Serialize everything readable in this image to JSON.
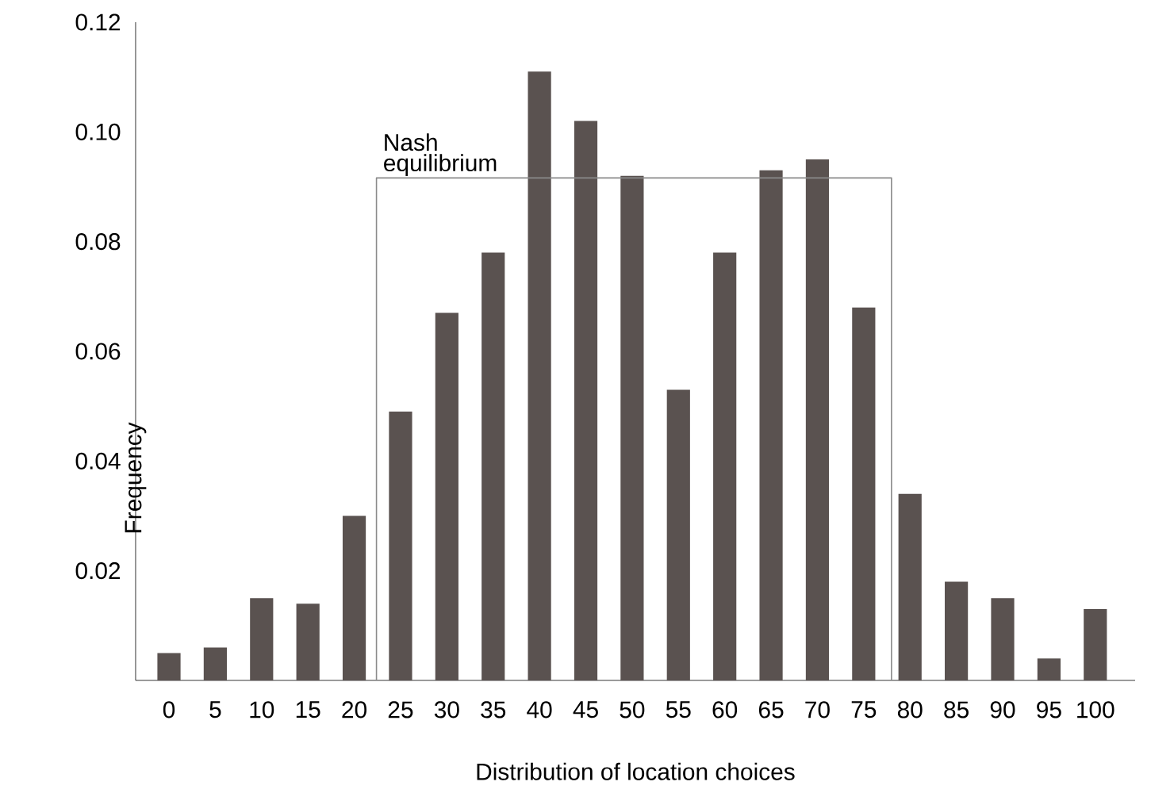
{
  "chart_data": {
    "type": "bar",
    "xlabel": "Distribution of location choices",
    "ylabel": "Frequency",
    "xlim": [
      -3.6,
      104.3
    ],
    "ylim": [
      0,
      0.12
    ],
    "xticks": [
      0,
      5,
      10,
      15,
      20,
      25,
      30,
      35,
      40,
      45,
      50,
      55,
      60,
      65,
      70,
      75,
      80,
      85,
      90,
      95,
      100
    ],
    "yticks": [
      {
        "value": 0.02,
        "label": "0.02"
      },
      {
        "value": 0.04,
        "label": "0.04"
      },
      {
        "value": 0.06,
        "label": "0.06"
      },
      {
        "value": 0.08,
        "label": "0.08"
      },
      {
        "value": 0.1,
        "label": "0.10"
      },
      {
        "value": 0.12,
        "label": "0.12"
      }
    ],
    "series": [
      {
        "color": "#5a5250",
        "x": [
          0,
          5,
          10,
          15,
          20,
          25,
          30,
          35,
          40,
          45,
          50,
          55,
          60,
          65,
          70,
          75,
          80,
          85,
          90,
          95,
          100
        ],
        "values": [
          0.005,
          0.006,
          0.015,
          0.014,
          0.03,
          0.049,
          0.067,
          0.078,
          0.111,
          0.102,
          0.092,
          0.053,
          0.078,
          0.093,
          0.095,
          0.068,
          0.034,
          0.018,
          0.015,
          0.004,
          0.013
        ]
      },
      {
        "type": "line",
        "name": "Nash equilibrium",
        "color": "#8a8a8a",
        "x": [
          22.4,
          22.4,
          78.0,
          78.0
        ],
        "values": [
          0,
          0.0916,
          0.0916,
          0
        ]
      }
    ]
  }
}
